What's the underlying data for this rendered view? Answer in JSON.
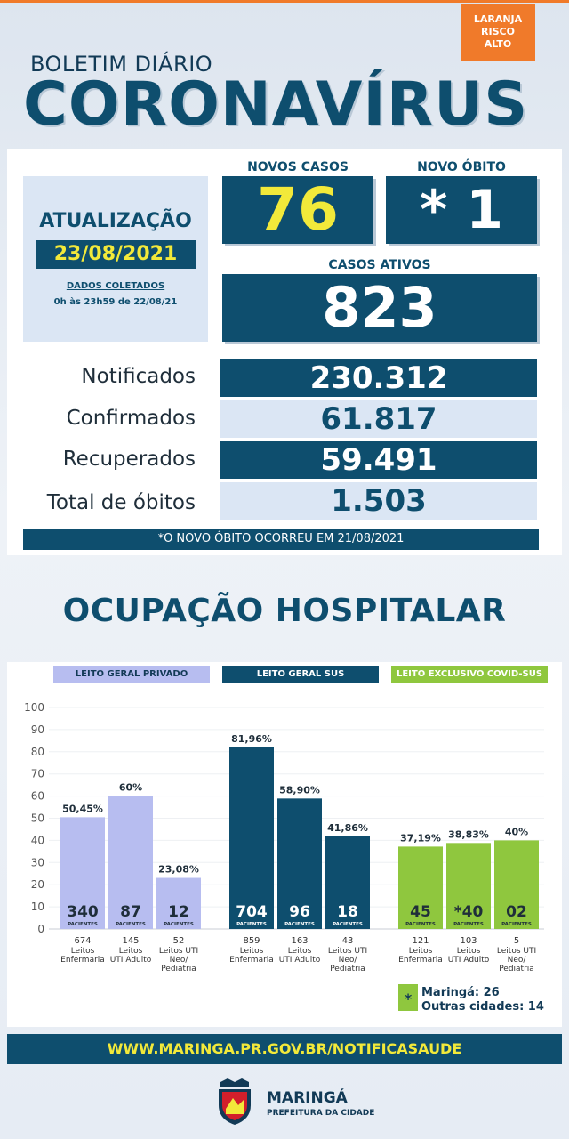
{
  "header": {
    "risk_badge": [
      "LARANJA",
      "RISCO",
      "ALTO"
    ],
    "subtitle": "BOLETIM DIÁRIO",
    "title": "CORONAVÍRUS"
  },
  "update": {
    "label": "ATUALIZAÇÃO",
    "date": "23/08/2021",
    "collected_label": "DADOS COLETADOS",
    "collected_range": "0h às 23h59 de 22/08/21"
  },
  "highlights": {
    "new_cases_label": "NOVOS CASOS",
    "new_cases_value": "76",
    "new_death_label": "NOVO ÓBITO",
    "new_death_value": "* 1",
    "active_label": "CASOS ATIVOS",
    "active_value": "823"
  },
  "stats": [
    {
      "label": "Notificados",
      "value": "230.312"
    },
    {
      "label": "Confirmados",
      "value": "61.817"
    },
    {
      "label": "Recuperados",
      "value": "59.491"
    },
    {
      "label": "Total de óbitos",
      "value": "1.503"
    }
  ],
  "note": "*O NOVO ÓBITO OCORREU EM 21/08/2021",
  "occupancy_title": "OCUPAÇÃO HOSPITALAR",
  "colors": {
    "dark_blue": "#0e4e6e",
    "lavender": "#b7bdf0",
    "green": "#8fc73e",
    "yellow": "#f2e93a",
    "orange": "#f07a2a"
  },
  "chart_data": {
    "type": "bar",
    "ylim": [
      0,
      100
    ],
    "yticks": [
      0,
      10,
      20,
      30,
      40,
      50,
      60,
      70,
      80,
      90,
      100
    ],
    "patients_label": "PACIENTES",
    "groups": [
      {
        "name": "LEITO GERAL PRIVADO",
        "color": "#b7bdf0",
        "header_text_color": "#123a56",
        "bars": [
          {
            "percent": 50.45,
            "percent_label": "50,45%",
            "patients": "340",
            "beds": "674",
            "bed_type": [
              "Leitos",
              "Enfermaria"
            ]
          },
          {
            "percent": 60,
            "percent_label": "60%",
            "patients": "87",
            "beds": "145",
            "bed_type": [
              "Leitos",
              "UTI Adulto"
            ]
          },
          {
            "percent": 23.08,
            "percent_label": "23,08%",
            "patients": "12",
            "beds": "52",
            "bed_type": [
              "Leitos UTI",
              "Neo/",
              "Pediatria"
            ]
          }
        ]
      },
      {
        "name": "LEITO GERAL SUS",
        "color": "#0e4e6e",
        "header_text_color": "#ffffff",
        "bars": [
          {
            "percent": 81.96,
            "percent_label": "81,96%",
            "patients": "704",
            "beds": "859",
            "bed_type": [
              "Leitos",
              "Enfermaria"
            ]
          },
          {
            "percent": 58.9,
            "percent_label": "58,90%",
            "patients": "96",
            "beds": "163",
            "bed_type": [
              "Leitos",
              "UTI Adulto"
            ]
          },
          {
            "percent": 41.86,
            "percent_label": "41,86%",
            "patients": "18",
            "beds": "43",
            "bed_type": [
              "Leitos UTI",
              "Neo/",
              "Pediatria"
            ]
          }
        ]
      },
      {
        "name": "LEITO EXCLUSIVO COVID-SUS",
        "color": "#8fc73e",
        "header_text_color": "#ffffff",
        "bars": [
          {
            "percent": 37.19,
            "percent_label": "37,19%",
            "patients": "45",
            "beds": "121",
            "bed_type": [
              "Leitos",
              "Enfermaria"
            ]
          },
          {
            "percent": 38.83,
            "percent_label": "38,83%",
            "patients": "*40",
            "beds": "103",
            "bed_type": [
              "Leitos",
              "UTI Adulto"
            ]
          },
          {
            "percent": 40,
            "percent_label": "40%",
            "patients": "02",
            "beds": "5",
            "bed_type": [
              "Leitos UTI",
              "Neo/",
              "Pediatria"
            ]
          }
        ]
      }
    ]
  },
  "legend": {
    "symbol": "*",
    "maringa": "Maringá: 26",
    "others": "Outras cidades: 14"
  },
  "url": "WWW.MARINGA.PR.GOV.BR/NOTIFICASAUDE",
  "footer": {
    "city": "MARINGÁ",
    "department": "PREFEITURA DA CIDADE"
  }
}
